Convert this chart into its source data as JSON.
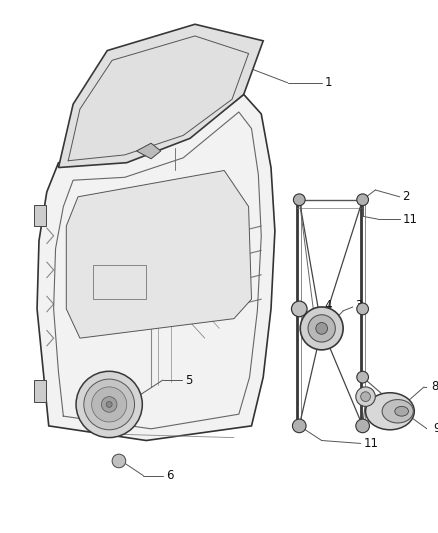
{
  "background_color": "#ffffff",
  "fig_width": 4.38,
  "fig_height": 5.33,
  "dpi": 100,
  "font_size": 8.5,
  "line_color": "#2a2a2a",
  "gray_light": "#c8c8c8",
  "gray_mid": "#a0a0a0",
  "gray_dark": "#555555"
}
